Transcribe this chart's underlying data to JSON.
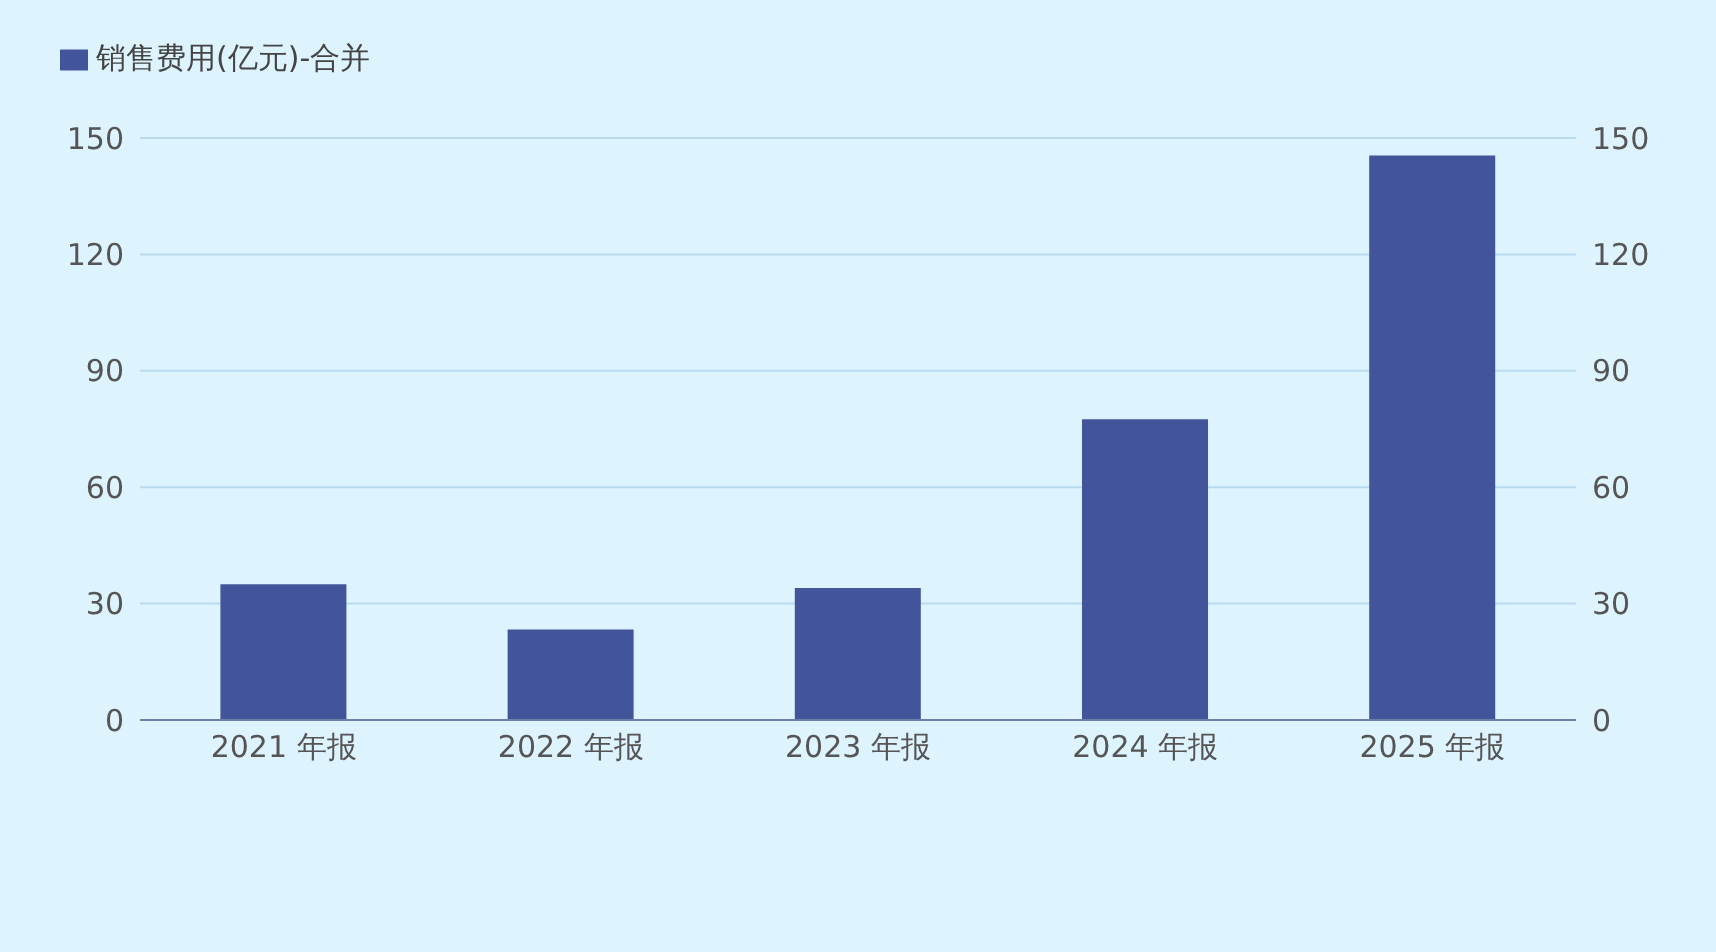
{
  "chart_data": {
    "type": "bar",
    "categories": [
      "2021 年报",
      "2022 年报",
      "2023 年报",
      "2024 年报",
      "2025 年报"
    ],
    "series": [
      {
        "name": "销售费用(亿元)-合并",
        "color": "#42549a",
        "values": [
          35,
          23.3,
          34,
          77.5,
          145.5
        ]
      }
    ],
    "ylim": [
      0,
      150
    ],
    "yticks": [
      0,
      30,
      60,
      90,
      120,
      150
    ],
    "y2lim": [
      0,
      150
    ],
    "y2ticks": [
      0,
      30,
      60,
      90,
      120,
      150
    ],
    "grid": "y",
    "legend": "top left"
  }
}
